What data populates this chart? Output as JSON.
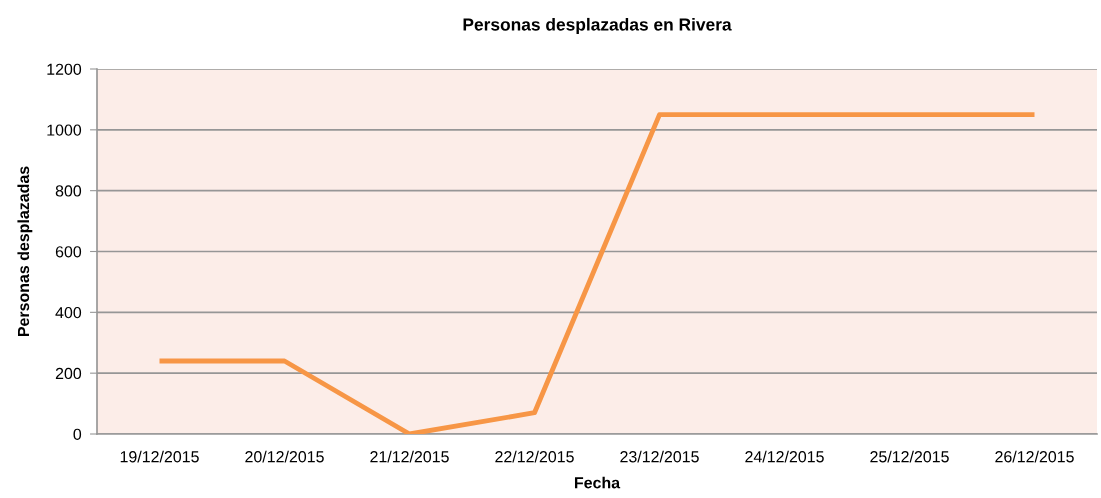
{
  "chart_data": {
    "type": "line",
    "title": "Personas desplazadas en Rivera",
    "xlabel": "Fecha",
    "ylabel": "Personas desplazadas",
    "categories": [
      "19/12/2015",
      "20/12/2015",
      "21/12/2015",
      "22/12/2015",
      "23/12/2015",
      "24/12/2015",
      "25/12/2015",
      "26/12/2015"
    ],
    "series": [
      {
        "color": "#f79646",
        "values": [
          240,
          240,
          0,
          70,
          1050,
          1050,
          1050,
          1050
        ]
      }
    ],
    "ylim": [
      0,
      1200
    ],
    "yticks": [
      0,
      200,
      400,
      600,
      800,
      1000,
      1200
    ],
    "grid": "y",
    "marker": "none",
    "line_style": "solid"
  }
}
